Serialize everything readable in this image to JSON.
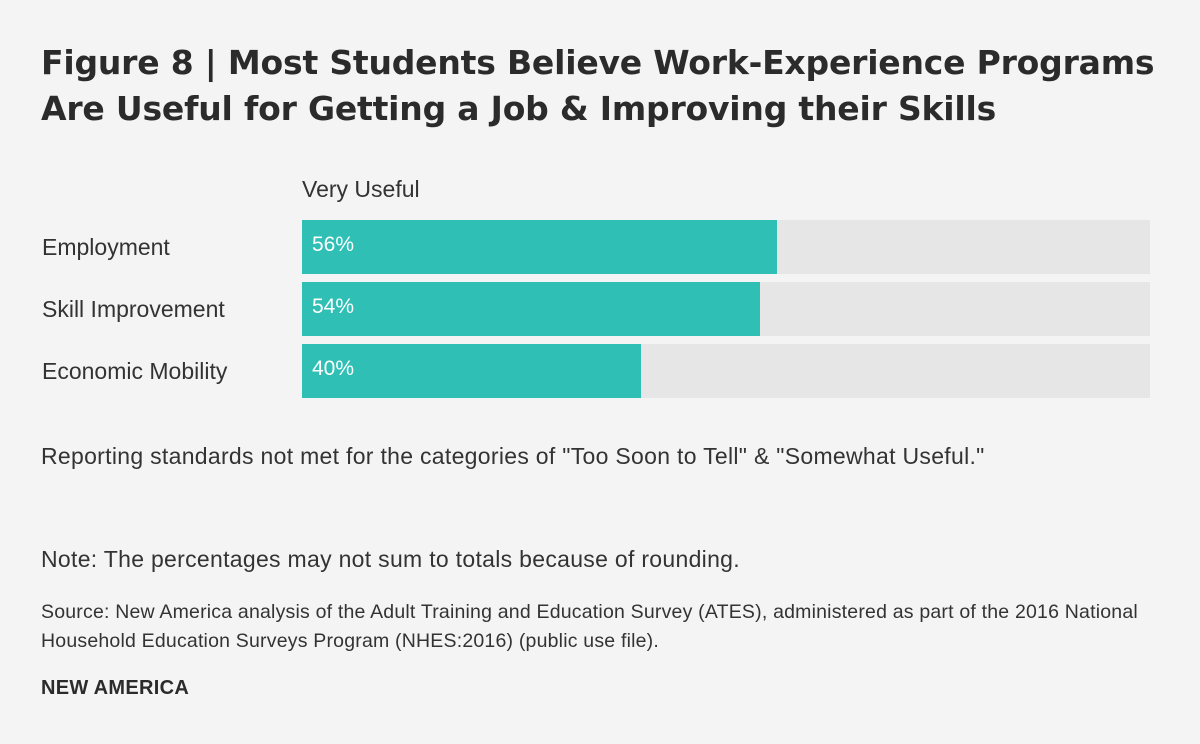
{
  "title": "Figure 8 | Most Students Believe Work-Experience Programs Are Useful for Getting a Job & Improving their Skills",
  "colors": {
    "bar": "#2fbfb4",
    "track": "#e6e6e6",
    "background": "#f4f4f4"
  },
  "chart_data": {
    "type": "bar",
    "orientation": "horizontal",
    "series": [
      {
        "name": "Very Useful",
        "values": [
          56,
          54,
          40
        ]
      }
    ],
    "categories": [
      "Employment",
      "Skill Improvement",
      "Economic Mobility"
    ],
    "value_labels": [
      "56%",
      "54%",
      "40%"
    ],
    "xlim": [
      0,
      100
    ]
  },
  "notes": {
    "reporting": "Reporting standards not met for the categories of \"Too Soon to Tell\" & \"Somewhat Useful.\"",
    "rounding": "Note: The percentages may not sum to totals because of rounding.",
    "source": "Source: New America analysis of the Adult Training and Education Survey (ATES), administered as part of the 2016 National Household Education Surveys Program (NHES:2016) (public use file)."
  },
  "brand": "NEW AMERICA"
}
